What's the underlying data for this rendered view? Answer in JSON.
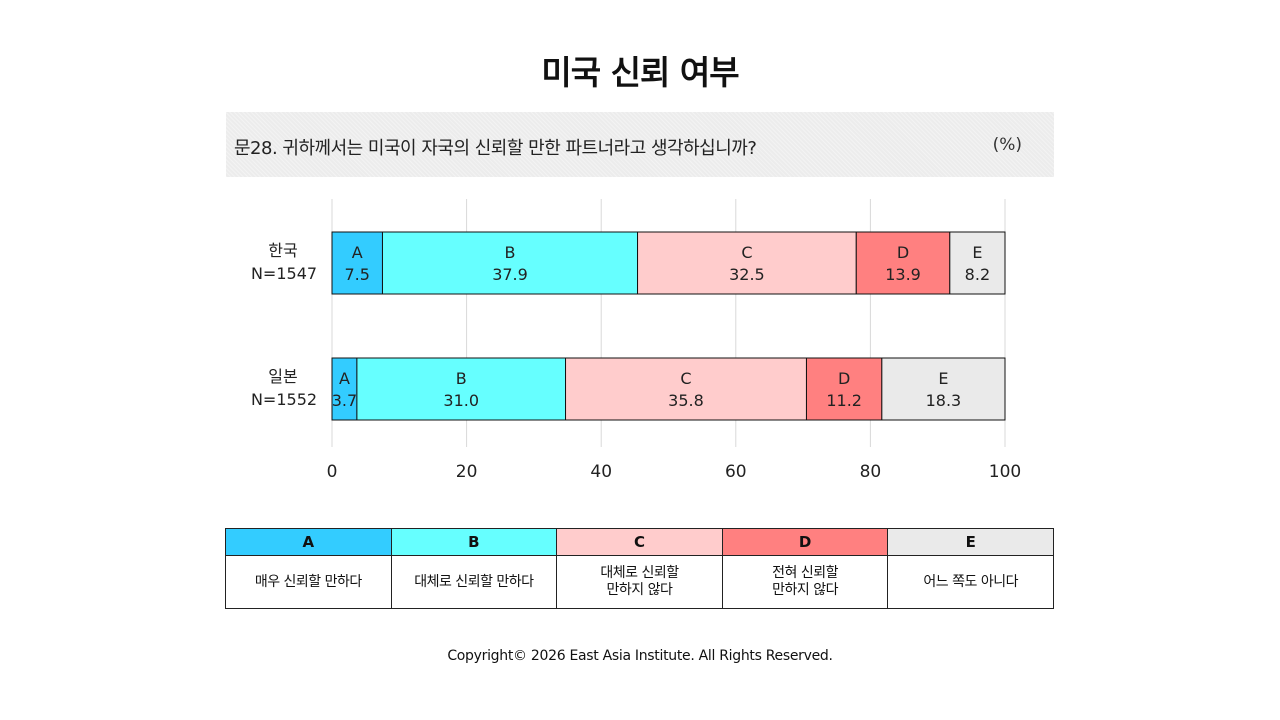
{
  "title": "미국 신뢰 여부",
  "question": "문28. 귀하께서는 미국이 자국의 신뢰할 만한 파트너라고 생각하십니까?",
  "unit": "(%)",
  "chart_data": {
    "type": "bar",
    "orientation": "horizontal",
    "stacked": true,
    "categories": [
      {
        "name": "한국",
        "n": "N=1547"
      },
      {
        "name": "일본",
        "n": "N=1552"
      }
    ],
    "series": [
      {
        "name": "A",
        "color": "#33ccff",
        "values": [
          7.5,
          3.7
        ]
      },
      {
        "name": "B",
        "color": "#66ffff",
        "values": [
          37.9,
          31.0
        ]
      },
      {
        "name": "C",
        "color": "#ffcccc",
        "values": [
          32.5,
          35.8
        ]
      },
      {
        "name": "D",
        "color": "#ff8080",
        "values": [
          13.9,
          11.2
        ]
      },
      {
        "name": "E",
        "color": "#eaeaea",
        "values": [
          8.2,
          18.3
        ]
      }
    ],
    "xlim": [
      0,
      100
    ],
    "xticks": [
      "0",
      "20",
      "40",
      "60",
      "80",
      "100"
    ],
    "grid": true
  },
  "legend": [
    {
      "key": "A",
      "color": "#33ccff",
      "lines": [
        "매우 신뢰할 만하다"
      ]
    },
    {
      "key": "B",
      "color": "#66ffff",
      "lines": [
        "대체로 신뢰할 만하다"
      ]
    },
    {
      "key": "C",
      "color": "#ffcccc",
      "lines": [
        "대체로 신뢰할",
        "만하지 않다"
      ]
    },
    {
      "key": "D",
      "color": "#ff8080",
      "lines": [
        "전혀 신뢰할",
        "만하지 않다"
      ]
    },
    {
      "key": "E",
      "color": "#eaeaea",
      "lines": [
        "어느 쪽도 아니다"
      ]
    }
  ],
  "copyright": "Copyright© 2026 East Asia Institute. All Rights Reserved."
}
